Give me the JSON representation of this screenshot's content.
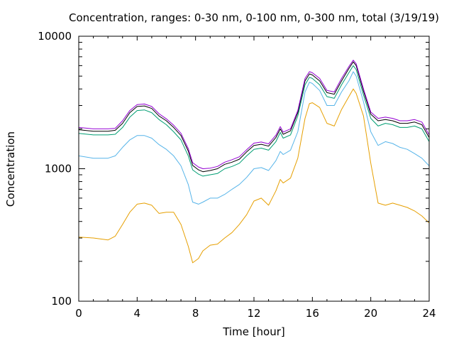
{
  "chart_data": {
    "type": "line",
    "title": "Concentration, ranges: 0-30 nm, 0-100 nm, 0-300 nm, total (3/19/19)",
    "xlabel": "Time [hour]",
    "ylabel": "Concentration",
    "xlim": [
      0,
      24
    ],
    "ylim": [
      100,
      10000
    ],
    "yscale": "log",
    "xticks": [
      0,
      4,
      8,
      12,
      16,
      20,
      24
    ],
    "yticks": [
      100,
      1000,
      10000
    ],
    "xtick_labels": [
      "0",
      "4",
      "8",
      "12",
      "16",
      "20",
      "24"
    ],
    "ytick_labels": [
      "100",
      "1000",
      "10000"
    ],
    "grid": false,
    "legend": "none",
    "series": [
      {
        "color": "#e69f00",
        "x": [
          0,
          1,
          2,
          2.5,
          3,
          3.5,
          4,
          4.5,
          5,
          5.5,
          6,
          6.5,
          7,
          7.5,
          7.8,
          8.2,
          8.5,
          9,
          9.5,
          10,
          10.5,
          11,
          11.5,
          12,
          12.5,
          13,
          13.5,
          13.8,
          14,
          14.5,
          15,
          15.5,
          15.8,
          16,
          16.5,
          17,
          17.5,
          18,
          18.5,
          18.8,
          19,
          19.5,
          20,
          20.5,
          21,
          21.5,
          22,
          22.5,
          23,
          23.5,
          24
        ],
        "y": [
          305,
          300,
          290,
          310,
          380,
          470,
          540,
          550,
          530,
          460,
          470,
          470,
          380,
          260,
          195,
          210,
          240,
          265,
          270,
          300,
          330,
          380,
          450,
          570,
          600,
          530,
          680,
          830,
          780,
          850,
          1200,
          2400,
          3100,
          3150,
          2900,
          2200,
          2100,
          2800,
          3500,
          4000,
          3700,
          2500,
          1100,
          550,
          530,
          550,
          530,
          510,
          480,
          440,
          390
        ]
      },
      {
        "color": "#56b4e9",
        "x": [
          0,
          1,
          2,
          2.5,
          3,
          3.5,
          4,
          4.5,
          5,
          5.5,
          6,
          6.5,
          7,
          7.5,
          7.8,
          8.2,
          8.5,
          9,
          9.5,
          10,
          10.5,
          11,
          11.5,
          12,
          12.5,
          13,
          13.5,
          13.8,
          14,
          14.5,
          15,
          15.5,
          15.8,
          16,
          16.5,
          17,
          17.5,
          18,
          18.5,
          18.8,
          19,
          19.5,
          20,
          20.5,
          21,
          21.5,
          22,
          22.5,
          23,
          23.5,
          24
        ],
        "y": [
          1250,
          1200,
          1200,
          1250,
          1450,
          1650,
          1780,
          1780,
          1700,
          1520,
          1400,
          1250,
          1050,
          760,
          560,
          540,
          560,
          600,
          600,
          640,
          700,
          760,
          860,
          1000,
          1020,
          970,
          1150,
          1350,
          1280,
          1380,
          1900,
          3800,
          4500,
          4400,
          3900,
          3000,
          3000,
          3800,
          4600,
          5400,
          5000,
          3200,
          1900,
          1500,
          1600,
          1550,
          1450,
          1400,
          1300,
          1200,
          1050
        ]
      },
      {
        "color": "#009e73",
        "x": [
          0,
          1,
          2,
          2.5,
          3,
          3.5,
          4,
          4.5,
          5,
          5.5,
          6,
          6.5,
          7,
          7.5,
          7.8,
          8.2,
          8.5,
          9,
          9.5,
          10,
          10.5,
          11,
          11.5,
          12,
          12.5,
          13,
          13.5,
          13.8,
          14,
          14.5,
          15,
          15.5,
          15.8,
          16,
          16.5,
          17,
          17.5,
          18,
          18.5,
          18.8,
          19,
          19.5,
          20,
          20.5,
          21,
          21.5,
          22,
          22.5,
          23,
          23.5,
          24
        ],
        "y": [
          1850,
          1800,
          1800,
          1820,
          2050,
          2450,
          2750,
          2780,
          2650,
          2350,
          2150,
          1900,
          1650,
          1250,
          980,
          910,
          880,
          900,
          920,
          1000,
          1040,
          1100,
          1250,
          1400,
          1430,
          1380,
          1600,
          1880,
          1700,
          1800,
          2500,
          4300,
          4900,
          4800,
          4300,
          3500,
          3400,
          4300,
          5300,
          6000,
          5600,
          3600,
          2400,
          2100,
          2200,
          2150,
          2050,
          2050,
          2100,
          2000,
          1600
        ]
      },
      {
        "color": "#000000",
        "x": [
          0,
          1,
          2,
          2.5,
          3,
          3.5,
          4,
          4.5,
          5,
          5.5,
          6,
          6.5,
          7,
          7.5,
          7.8,
          8.2,
          8.5,
          9,
          9.5,
          10,
          10.5,
          11,
          11.5,
          12,
          12.5,
          13,
          13.5,
          13.8,
          14,
          14.5,
          15,
          15.5,
          15.8,
          16,
          16.5,
          17,
          17.5,
          18,
          18.5,
          18.8,
          19,
          19.5,
          20,
          20.5,
          21,
          21.5,
          22,
          22.5,
          23,
          23.5,
          24
        ],
        "y": [
          1970,
          1920,
          1920,
          1950,
          2200,
          2650,
          2950,
          2980,
          2850,
          2500,
          2300,
          2050,
          1780,
          1360,
          1060,
          980,
          950,
          970,
          1000,
          1080,
          1120,
          1180,
          1340,
          1500,
          1530,
          1480,
          1720,
          2000,
          1820,
          1930,
          2650,
          4600,
          5200,
          5100,
          4600,
          3750,
          3650,
          4600,
          5700,
          6400,
          6000,
          3850,
          2580,
          2300,
          2350,
          2300,
          2200,
          2200,
          2250,
          2150,
          1720
        ]
      },
      {
        "color": "#9400d3",
        "x": [
          0,
          1,
          2,
          2.5,
          3,
          3.5,
          4,
          4.5,
          5,
          5.5,
          6,
          6.5,
          7,
          7.5,
          7.8,
          8.2,
          8.5,
          9,
          9.5,
          10,
          10.5,
          11,
          11.5,
          12,
          12.5,
          13,
          13.5,
          13.8,
          14,
          14.5,
          15,
          15.5,
          15.8,
          16,
          16.5,
          17,
          17.5,
          18,
          18.5,
          18.8,
          19,
          19.5,
          20,
          20.5,
          21,
          21.5,
          22,
          22.5,
          23,
          23.5,
          24
        ],
        "y": [
          2050,
          2000,
          2000,
          2020,
          2300,
          2750,
          3050,
          3080,
          2950,
          2600,
          2380,
          2130,
          1850,
          1420,
          1110,
          1030,
          1000,
          1010,
          1040,
          1120,
          1170,
          1230,
          1390,
          1560,
          1590,
          1540,
          1790,
          2080,
          1890,
          2000,
          2750,
          4800,
          5400,
          5300,
          4800,
          3900,
          3800,
          4800,
          5900,
          6600,
          6200,
          4000,
          2680,
          2400,
          2450,
          2400,
          2300,
          2300,
          2350,
          2250,
          1800
        ]
      }
    ]
  }
}
